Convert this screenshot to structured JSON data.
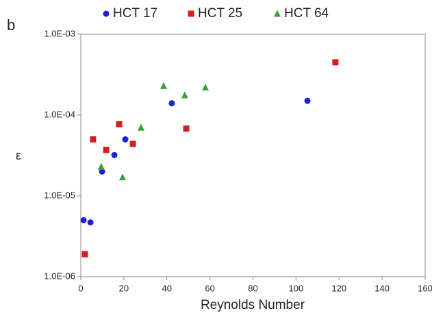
{
  "chart_data": {
    "type": "scatter",
    "panel_label": "b",
    "x_label": "Reynolds Number",
    "y_label": "ε",
    "log_y": true,
    "xlim": [
      0,
      160
    ],
    "xticks": [
      0,
      20,
      40,
      60,
      80,
      100,
      120,
      140,
      160
    ],
    "ylim": [
      1e-06,
      0.001
    ],
    "yticks": [
      {
        "value": 1e-06,
        "label": "1.0E-06"
      },
      {
        "value": 1e-05,
        "label": "1.0E-05"
      },
      {
        "value": 0.0001,
        "label": "1.0E-04"
      },
      {
        "value": 0.001,
        "label": "1.0E-03"
      }
    ],
    "series": [
      {
        "name": "HCT 17",
        "color": "#1f1fd6",
        "marker": "circle",
        "x": [
          1.3,
          4.5,
          9.9,
          15.6,
          20.7,
          42.3,
          105.3
        ],
        "values": [
          5e-06,
          4.7e-06,
          2e-05,
          3.2e-05,
          5e-05,
          0.00014,
          0.00015
        ]
      },
      {
        "name": "HCT 25",
        "color": "#d81e1e",
        "marker": "square",
        "x": [
          1.9,
          5.7,
          11.8,
          17.8,
          24.2,
          49,
          118.3
        ],
        "values": [
          1.9e-06,
          5e-05,
          3.7e-05,
          7.7e-05,
          4.4e-05,
          6.8e-05,
          0.00045
        ]
      },
      {
        "name": "HCT 64",
        "color": "#3aa13a",
        "marker": "triangle",
        "x": [
          9.5,
          19.4,
          28,
          38.5,
          48.3,
          57.9
        ],
        "values": [
          2.3e-05,
          1.7e-05,
          7e-05,
          0.00023,
          0.000176,
          0.00022
        ]
      }
    ]
  }
}
